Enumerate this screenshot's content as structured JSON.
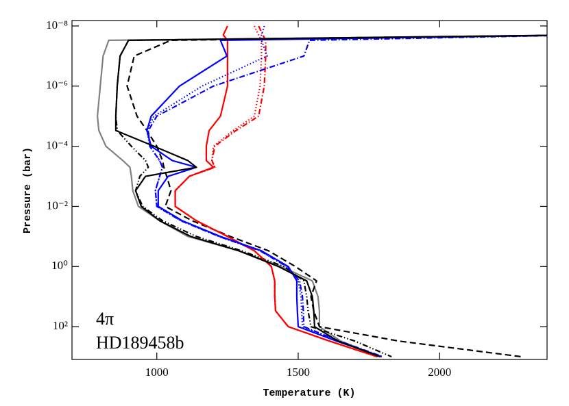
{
  "chart_data": {
    "type": "line",
    "xlabel": "Temperature (K)",
    "ylabel": "Pressure (bar)",
    "annotations": [
      "4π",
      "HD189458b"
    ],
    "log_y": true,
    "y_inverted": true,
    "xlim": [
      700,
      2380
    ],
    "ylim": [
      6.6e-09,
      1230
    ],
    "xticks": [
      1000,
      1500,
      2000
    ],
    "yticks": [
      {
        "value": 1e-08,
        "label": "10⁻⁸"
      },
      {
        "value": 1e-06,
        "label": "10⁻⁶"
      },
      {
        "value": 0.0001,
        "label": "10⁻⁴"
      },
      {
        "value": 0.01,
        "label": "10⁻²"
      },
      {
        "value": 1,
        "label": "10⁰"
      },
      {
        "value": 100,
        "label": "10²"
      }
    ],
    "y": [
      1e-08,
      2e-08,
      3e-08,
      1e-07,
      1e-06,
      1e-05,
      3e-05,
      0.0001,
      0.0003,
      0.0005,
      0.001,
      0.003,
      0.01,
      0.03,
      0.1,
      0.3,
      1,
      3,
      10,
      30,
      100,
      300,
      1000
    ],
    "series": [
      {
        "color": "#808080",
        "dash": "solid",
        "values": [
          null,
          2500,
          830,
          810,
          800,
          790,
          795,
          820,
          880,
          905,
          910,
          915,
          935,
          1010,
          1110,
          1290,
          1440,
          1550,
          1570,
          1575,
          1575,
          1650,
          1790
        ]
      },
      {
        "color": "#000000",
        "dash": "dashed",
        "values": [
          null,
          2500,
          1050,
          920,
          895,
          930,
          965,
          1000,
          1020,
          1025,
          1035,
          1050,
          1030,
          1125,
          1260,
          1395,
          1490,
          1565,
          1545,
          1555,
          1575,
          1855,
          2290
        ]
      },
      {
        "color": "#000000",
        "dash": "dashdotdot",
        "values": [
          null,
          2500,
          900,
          870,
          860,
          855,
          860,
          910,
          960,
          970,
          940,
          925,
          950,
          1020,
          1140,
          1300,
          1450,
          1520,
          1530,
          1535,
          1545,
          1700,
          1830
        ]
      },
      {
        "color": "#ff0000",
        "dash": "dotted",
        "values": [
          1345,
          1360,
          1370,
          1370,
          1365,
          1345,
          1270,
          1200,
          1195,
          1205,
          1115,
          1065,
          1065,
          1140,
          1250,
          1345,
          1405,
          1417,
          1417,
          1420,
          1465,
          1610,
          1780
        ]
      },
      {
        "color": "#ff0000",
        "dash": "dashdot",
        "values": [
          1360,
          1375,
          1385,
          1385,
          1380,
          1360,
          1280,
          1205,
          1195,
          1205,
          1115,
          1065,
          1065,
          1140,
          1250,
          1345,
          1405,
          1417,
          1417,
          1420,
          1465,
          1610,
          1780
        ]
      },
      {
        "color": "#ff0000",
        "dash": "solid",
        "values": [
          1250,
          1235,
          1250,
          1250,
          1250,
          1225,
          1185,
          1175,
          1175,
          1200,
          1115,
          1065,
          1065,
          1140,
          1250,
          1345,
          1405,
          1417,
          1417,
          1420,
          1465,
          1610,
          1780
        ]
      },
      {
        "color": "#0000ff",
        "dash": "dotted",
        "values": [
          1380,
          1370,
          1370,
          1390,
          1160,
          990,
          965,
          975,
          1010,
          1020,
          1010,
          995,
          1000,
          1085,
          1220,
          1365,
          1460,
          1500,
          1510,
          1512,
          1515,
          1640,
          1795
        ]
      },
      {
        "color": "#0000ff",
        "dash": "dashdot",
        "values": [
          null,
          2500,
          1540,
          1520,
          1200,
          1000,
          970,
          975,
          1010,
          1020,
          1010,
          995,
          1000,
          1085,
          1220,
          1365,
          1460,
          1505,
          1515,
          1518,
          1520,
          1645,
          1800
        ]
      },
      {
        "color": "#0000ff",
        "dash": "solid",
        "values": [
          null,
          2500,
          1225,
          1248,
          1080,
          980,
          965,
          980,
          1055,
          1140,
          1040,
          1005,
          1005,
          1090,
          1225,
          1370,
          1465,
          1495,
          1495,
          1497,
          1500,
          1635,
          1795
        ]
      },
      {
        "color": "#000000",
        "dash": "solid",
        "values": [
          null,
          2500,
          900,
          870,
          860,
          855,
          855,
          990,
          1110,
          1140,
          960,
          925,
          945,
          1010,
          1120,
          1290,
          1430,
          1530,
          1550,
          1555,
          1558,
          1640,
          1790
        ]
      }
    ]
  }
}
